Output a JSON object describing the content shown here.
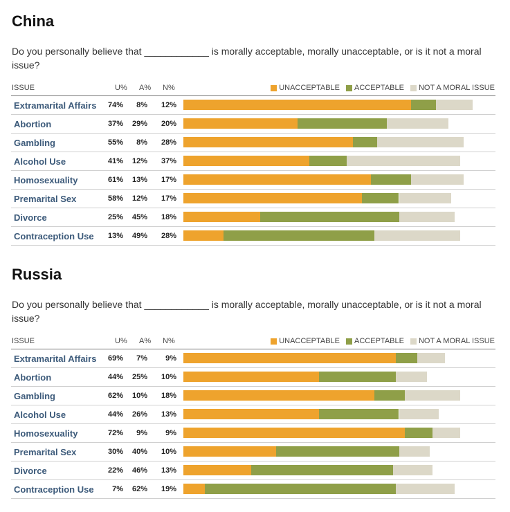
{
  "colors": {
    "unacceptable": "#eea32d",
    "acceptable": "#8f9f48",
    "not_moral": "#dcd8c8"
  },
  "legend": {
    "unacceptable": "UNACCEPTABLE",
    "acceptable": "ACCEPTABLE",
    "not_moral": "NOT A MORAL ISSUE"
  },
  "headers": {
    "issue": "ISSUE",
    "u": "U%",
    "a": "A%",
    "n": "N%"
  },
  "question": "Do you personally believe that ____________ is morally acceptable, morally unacceptable, or is it not a moral issue?",
  "chart_data": [
    {
      "type": "bar",
      "title": "China",
      "categories": [
        "Extramarital Affairs",
        "Abortion",
        "Gambling",
        "Alcohol Use",
        "Homosexuality",
        "Premarital Sex",
        "Divorce",
        "Contraception Use"
      ],
      "series": [
        {
          "name": "UNACCEPTABLE",
          "values": [
            74,
            37,
            55,
            41,
            61,
            58,
            25,
            13
          ]
        },
        {
          "name": "ACCEPTABLE",
          "values": [
            8,
            29,
            8,
            12,
            13,
            12,
            45,
            49
          ]
        },
        {
          "name": "NOT A MORAL ISSUE",
          "values": [
            12,
            20,
            28,
            37,
            17,
            17,
            18,
            28
          ]
        }
      ],
      "stacked": true,
      "orientation": "horizontal",
      "legend": "top-right"
    },
    {
      "type": "bar",
      "title": "Russia",
      "categories": [
        "Extramarital Affairs",
        "Abortion",
        "Gambling",
        "Alcohol Use",
        "Homosexuality",
        "Premarital Sex",
        "Divorce",
        "Contraception Use"
      ],
      "series": [
        {
          "name": "UNACCEPTABLE",
          "values": [
            69,
            44,
            62,
            44,
            72,
            30,
            22,
            7
          ]
        },
        {
          "name": "ACCEPTABLE",
          "values": [
            7,
            25,
            10,
            26,
            9,
            40,
            46,
            62
          ]
        },
        {
          "name": "NOT A MORAL ISSUE",
          "values": [
            9,
            10,
            18,
            13,
            9,
            10,
            13,
            19
          ]
        }
      ],
      "stacked": true,
      "orientation": "horizontal",
      "legend": "top-right"
    }
  ]
}
